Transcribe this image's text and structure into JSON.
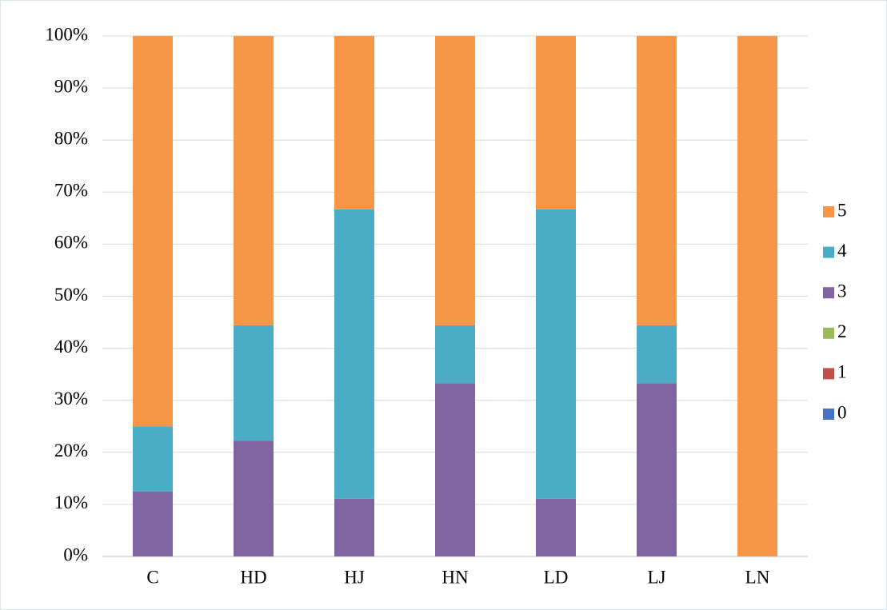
{
  "chart_data": {
    "type": "stacked_bar",
    "categories": [
      "C",
      "HD",
      "HJ",
      "HN",
      "LD",
      "LJ",
      "LN"
    ],
    "series": [
      {
        "name": "0",
        "color": "#4472c4",
        "values": [
          0,
          0,
          0,
          0,
          0,
          0,
          0
        ]
      },
      {
        "name": "1",
        "color": "#c0504d",
        "values": [
          0,
          0,
          0,
          0,
          0,
          0,
          0
        ]
      },
      {
        "name": "2",
        "color": "#9bbb59",
        "values": [
          0,
          0,
          0,
          0,
          0,
          0,
          0
        ]
      },
      {
        "name": "3",
        "color": "#8064a2",
        "values": [
          12.5,
          22.2,
          11.1,
          33.3,
          11.1,
          33.3,
          0
        ]
      },
      {
        "name": "4",
        "color": "#4bacc6",
        "values": [
          12.5,
          22.2,
          55.6,
          11.1,
          55.6,
          11.1,
          0
        ]
      },
      {
        "name": "5",
        "color": "#f79646",
        "values": [
          75,
          55.6,
          33.3,
          55.6,
          33.3,
          55.6,
          100
        ]
      }
    ],
    "ylim": [
      0,
      100
    ],
    "yticks": [
      {
        "value": 0,
        "label": "0%"
      },
      {
        "value": 10,
        "label": "10%"
      },
      {
        "value": 20,
        "label": "20%"
      },
      {
        "value": 30,
        "label": "30%"
      },
      {
        "value": 40,
        "label": "40%"
      },
      {
        "value": 50,
        "label": "50%"
      },
      {
        "value": 60,
        "label": "60%"
      },
      {
        "value": 70,
        "label": "70%"
      },
      {
        "value": 80,
        "label": "80%"
      },
      {
        "value": 90,
        "label": "90%"
      },
      {
        "value": 100,
        "label": "100%"
      }
    ],
    "grid": true,
    "legend": "right"
  }
}
